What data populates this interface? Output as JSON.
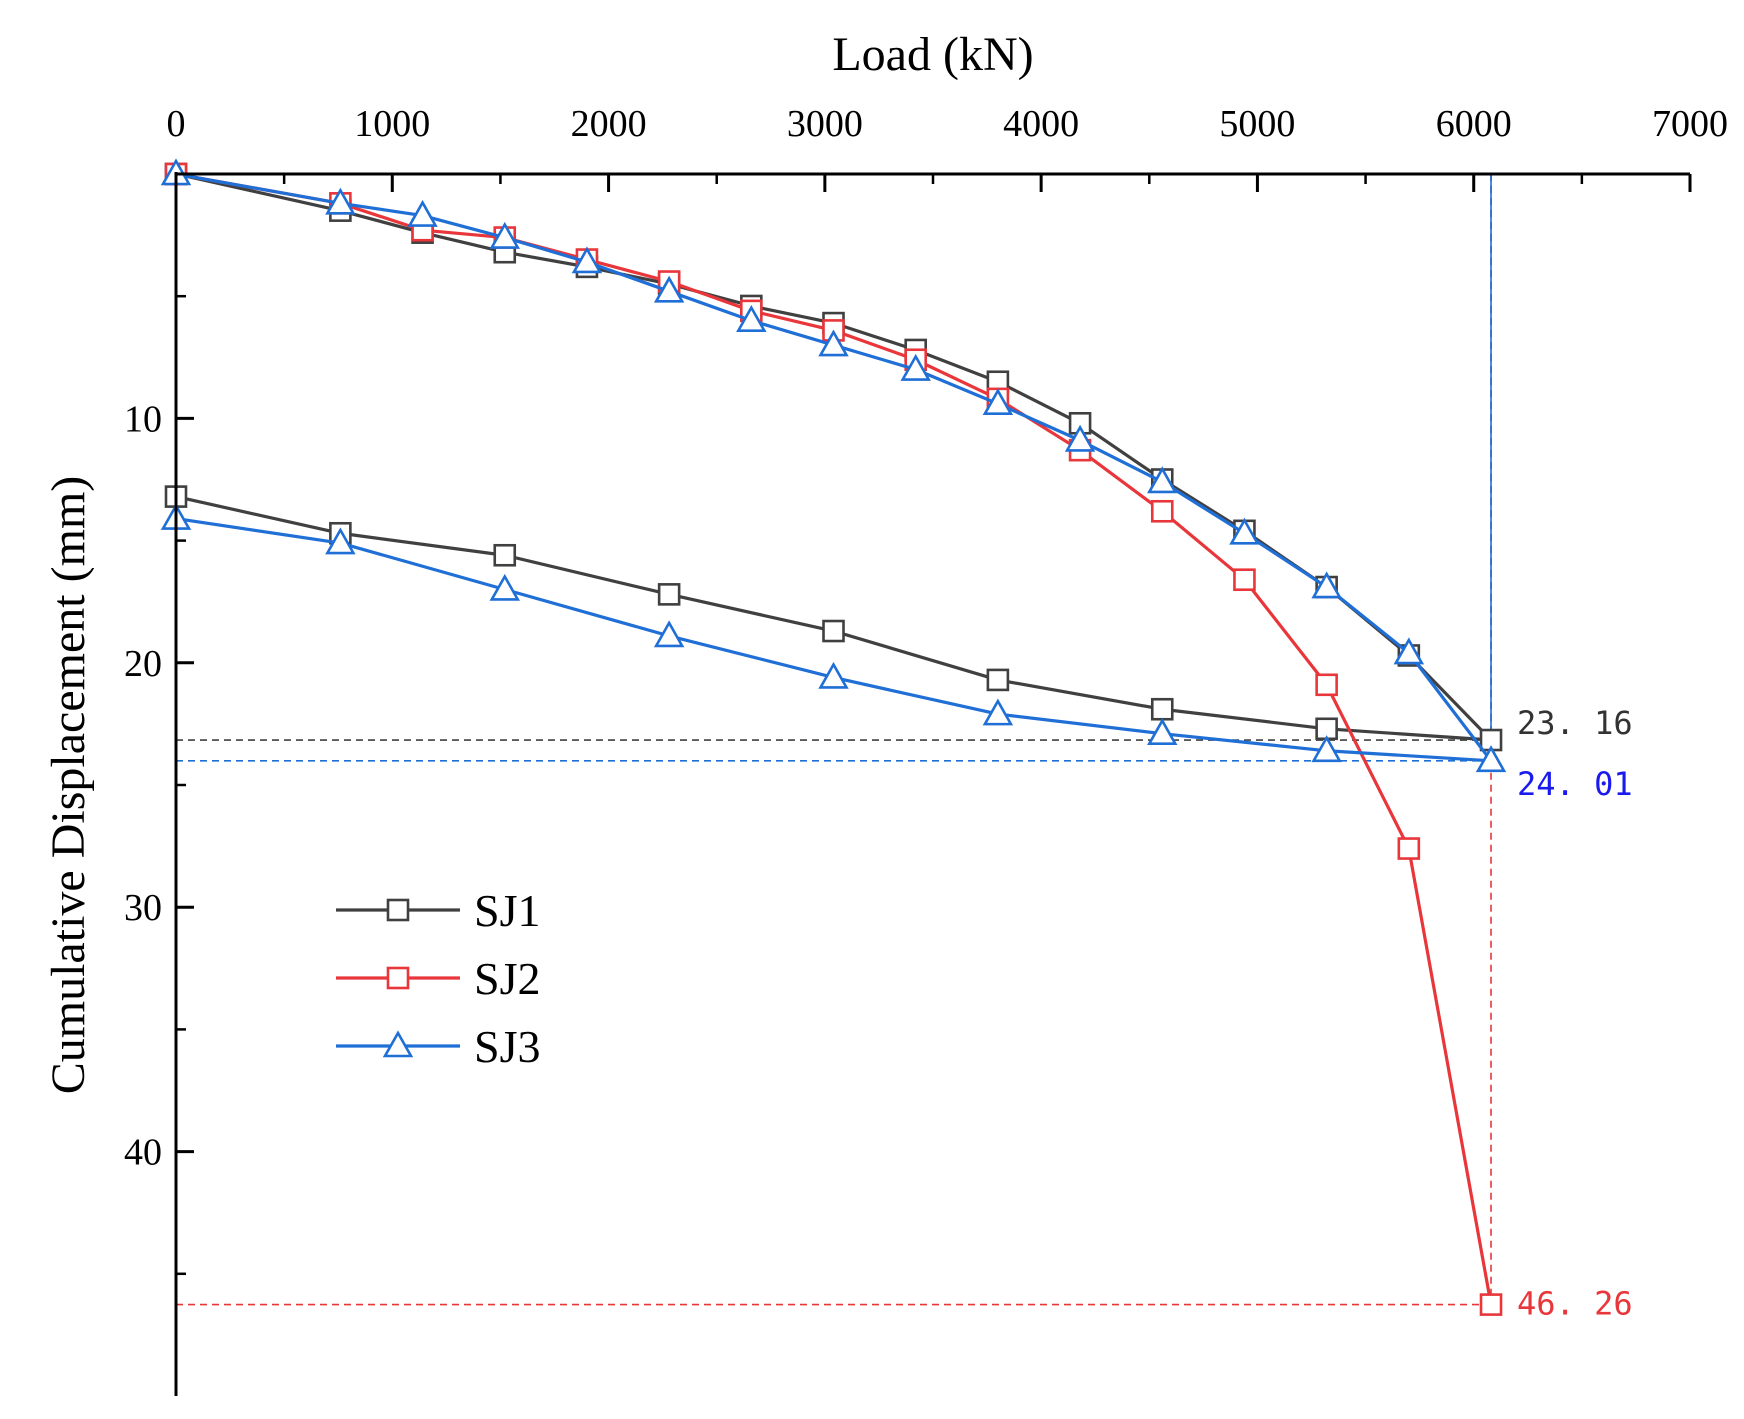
{
  "chart_data": {
    "type": "line",
    "xlabel": "Load (kN)",
    "ylabel": "Cumulative Displacement (mm)",
    "xlim": [
      0,
      7000
    ],
    "ylim": [
      0,
      50
    ],
    "y_inverted": true,
    "x_axis_position": "top",
    "x_ticks": [
      "0",
      "1000",
      "2000",
      "3000",
      "4000",
      "5000",
      "6000",
      "7000"
    ],
    "y_ticks": [
      "10",
      "20",
      "30",
      "40"
    ],
    "legend_position": "lower-left",
    "series": [
      {
        "name": "SJ1",
        "color": "#404040",
        "marker": "square",
        "loading": [
          [
            0,
            0
          ],
          [
            760,
            1.5
          ],
          [
            1140,
            2.4
          ],
          [
            1520,
            3.2
          ],
          [
            1900,
            3.8
          ],
          [
            2280,
            4.5
          ],
          [
            2660,
            5.4
          ],
          [
            3040,
            6.1
          ],
          [
            3420,
            7.2
          ],
          [
            3800,
            8.5
          ],
          [
            4180,
            10.2
          ],
          [
            4560,
            12.5
          ],
          [
            4940,
            14.6
          ],
          [
            5320,
            16.9
          ],
          [
            5700,
            19.7
          ],
          [
            6080,
            23.16
          ]
        ],
        "unloading": [
          [
            6080,
            23.16
          ],
          [
            5320,
            22.7
          ],
          [
            4560,
            21.9
          ],
          [
            3800,
            20.7
          ],
          [
            3040,
            18.7
          ],
          [
            2280,
            17.2
          ],
          [
            1520,
            15.6
          ],
          [
            760,
            14.7
          ],
          [
            0,
            13.2
          ]
        ]
      },
      {
        "name": "SJ2",
        "color": "#e8363a",
        "marker": "square",
        "loading": [
          [
            0,
            0
          ],
          [
            760,
            1.2
          ],
          [
            1140,
            2.3
          ],
          [
            1520,
            2.6
          ],
          [
            1900,
            3.5
          ],
          [
            2280,
            4.4
          ],
          [
            2660,
            5.6
          ],
          [
            3040,
            6.4
          ],
          [
            3420,
            7.6
          ],
          [
            3800,
            9.2
          ],
          [
            4180,
            11.3
          ],
          [
            4560,
            13.8
          ],
          [
            4940,
            16.6
          ],
          [
            5320,
            20.9
          ],
          [
            5700,
            27.6
          ],
          [
            6080,
            46.26
          ]
        ]
      },
      {
        "name": "SJ3",
        "color": "#1f6fd6",
        "marker": "triangle",
        "loading": [
          [
            0,
            0
          ],
          [
            760,
            1.2
          ],
          [
            1140,
            1.7
          ],
          [
            1520,
            2.6
          ],
          [
            1900,
            3.6
          ],
          [
            2280,
            4.8
          ],
          [
            2660,
            6.0
          ],
          [
            3040,
            7.0
          ],
          [
            3420,
            8.0
          ],
          [
            3800,
            9.4
          ],
          [
            4180,
            10.9
          ],
          [
            4560,
            12.6
          ],
          [
            4940,
            14.7
          ],
          [
            5320,
            16.9
          ],
          [
            5700,
            19.6
          ],
          [
            6080,
            24.01
          ]
        ],
        "unloading": [
          [
            6080,
            24.01
          ],
          [
            5320,
            23.6
          ],
          [
            4560,
            22.9
          ],
          [
            3800,
            22.1
          ],
          [
            3040,
            20.6
          ],
          [
            2280,
            18.9
          ],
          [
            1520,
            17.0
          ],
          [
            760,
            15.1
          ],
          [
            0,
            14.1
          ]
        ]
      }
    ],
    "reference_lines": [
      {
        "orientation": "vertical",
        "x": 6080,
        "y_from": 0,
        "y_to": 23.16,
        "color": "#404040",
        "style": "dashed"
      },
      {
        "orientation": "vertical",
        "x": 6080,
        "y_from": 0,
        "y_to": 24.01,
        "color": "#1f6fd6",
        "style": "solid"
      },
      {
        "orientation": "vertical",
        "x": 6080,
        "y_from": 24.01,
        "y_to": 46.26,
        "color": "#e8363a",
        "style": "dashed"
      },
      {
        "orientation": "horizontal",
        "y": 23.16,
        "x_from": 0,
        "x_to": 6080,
        "color": "#404040",
        "style": "dashed"
      },
      {
        "orientation": "horizontal",
        "y": 24.01,
        "x_from": 0,
        "x_to": 6080,
        "color": "#1f6fd6",
        "style": "dashed"
      },
      {
        "orientation": "horizontal",
        "y": 46.26,
        "x_from": 0,
        "x_to": 6080,
        "color": "#e8363a",
        "style": "dashed"
      }
    ],
    "annotations": [
      {
        "text": "23. 16",
        "x": 6080,
        "y": 23.16,
        "color": "#333333"
      },
      {
        "text": "24. 01",
        "x": 6080,
        "y": 24.01,
        "color": "#1a1aee"
      },
      {
        "text": "46. 26",
        "x": 6080,
        "y": 46.26,
        "color": "#e8363a"
      }
    ]
  }
}
